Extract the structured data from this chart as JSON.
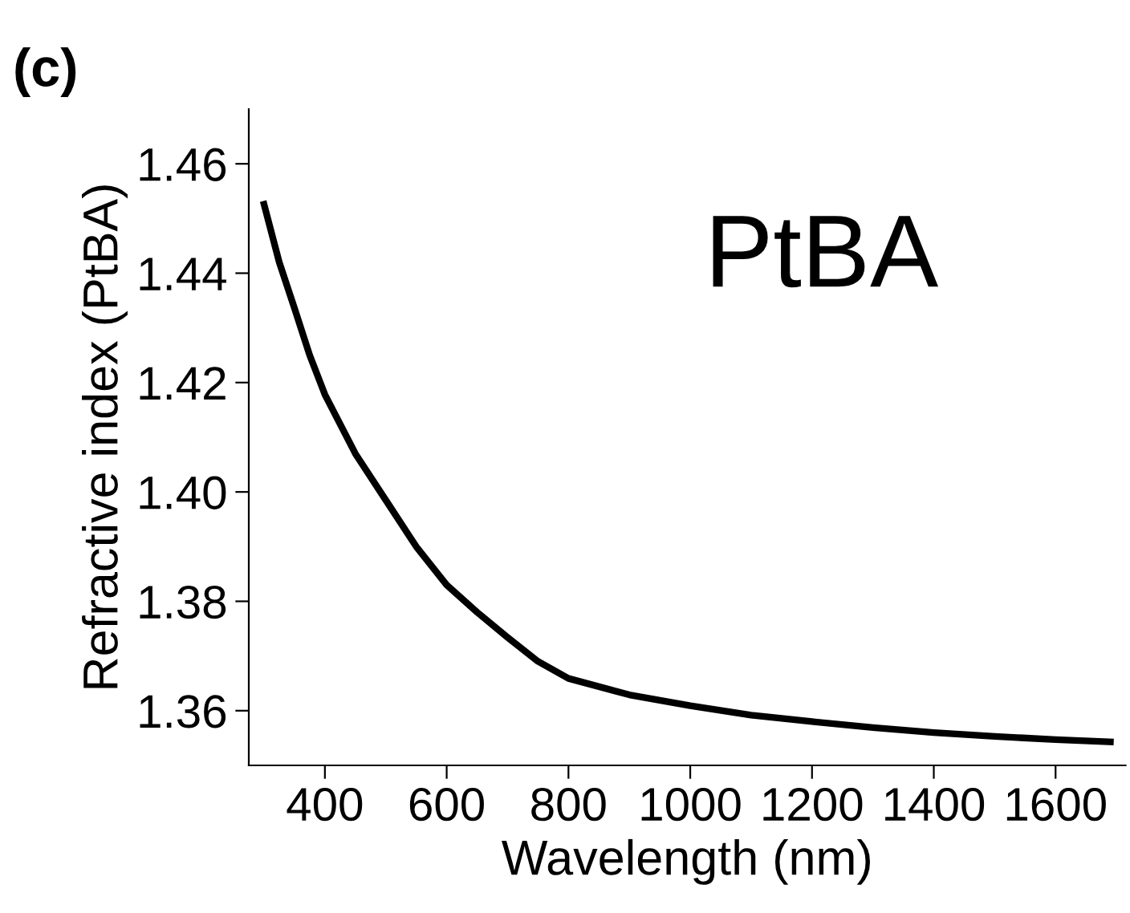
{
  "chart_data": {
    "type": "line",
    "xlabel": "Wavelength (nm)",
    "ylabel": "Refractive index (PtBA)",
    "annotations": [
      "(c)",
      "PtBA"
    ],
    "x": [
      300,
      325,
      350,
      375,
      400,
      450,
      500,
      550,
      600,
      650,
      700,
      750,
      800,
      900,
      1000,
      1100,
      1200,
      1300,
      1400,
      1500,
      1600,
      1690
    ],
    "series": [
      {
        "color": "#000000",
        "values": [
          1.4526,
          1.442,
          1.4336,
          1.425,
          1.4178,
          1.407,
          1.3985,
          1.39,
          1.383,
          1.378,
          1.3734,
          1.369,
          1.3659,
          1.3629,
          1.3609,
          1.3592,
          1.358,
          1.3569,
          1.356,
          1.3553,
          1.3547,
          1.3543
        ]
      }
    ],
    "xlim": [
      275,
      1715
    ],
    "ylim": [
      1.35,
      1.47
    ],
    "xticks": [
      400,
      600,
      800,
      1000,
      1200,
      1400,
      1600
    ],
    "yticks": [
      {
        "value": 1.36,
        "label": "1.36"
      },
      {
        "value": 1.38,
        "label": "1.38"
      },
      {
        "value": 1.4,
        "label": "1.40"
      },
      {
        "value": 1.42,
        "label": "1.42"
      },
      {
        "value": 1.44,
        "label": "1.44"
      },
      {
        "value": 1.46,
        "label": "1.46"
      }
    ],
    "grid": false,
    "legend": false,
    "line_style": "solid",
    "marker": "none"
  }
}
